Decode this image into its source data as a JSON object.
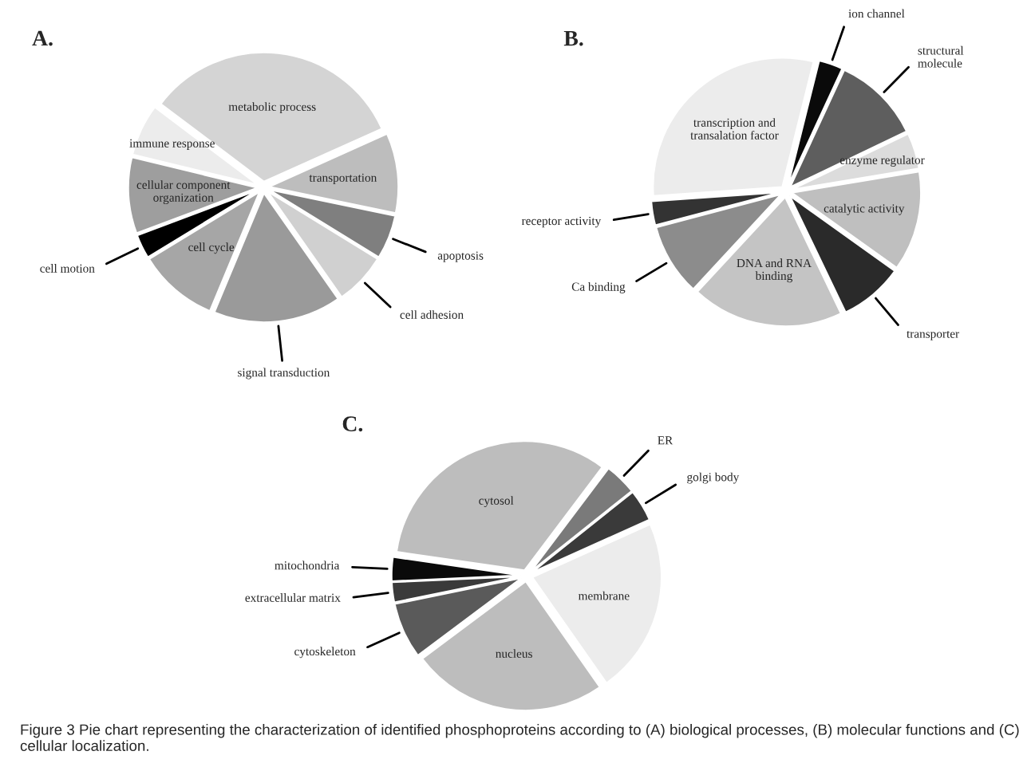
{
  "chart_data": [
    {
      "type": "pie",
      "title": "A.",
      "categories": [
        "metabolic process",
        "transportation",
        "apoptosis",
        "cell adhesion",
        "signal transduction",
        "cell cycle",
        "cell motion",
        "cellular component\norganization",
        "immune response"
      ],
      "values": [
        33,
        10,
        5.5,
        6.5,
        16,
        10,
        3,
        9.5,
        6.5
      ],
      "colors": [
        "#d4d4d4",
        "#bdbdbd",
        "#7f7f7f",
        "#d0d0d0",
        "#9a9a9a",
        "#a6a6a6",
        "#000000",
        "#9e9e9e",
        "#ececec"
      ],
      "legend": false
    },
    {
      "type": "pie",
      "title": "B.",
      "categories": [
        "ion channel",
        "structural\nmolecule",
        "enzyme regulator",
        "catalytic activity",
        "transporter",
        "DNA and RNA\nbinding",
        "Ca binding",
        "receptor activity",
        "transcription and\ntransalation factor"
      ],
      "values": [
        3,
        11,
        4.5,
        12.5,
        8,
        19,
        9,
        3,
        30
      ],
      "colors": [
        "#0a0a0a",
        "#5e5e5e",
        "#dcdcdc",
        "#bfbfbf",
        "#2a2a2a",
        "#c4c4c4",
        "#8c8c8c",
        "#333333",
        "#ececec"
      ],
      "legend": false
    },
    {
      "type": "pie",
      "title": "C.",
      "categories": [
        "ER",
        "golgi body",
        "membrane",
        "nucleus",
        "cytoskeleton",
        "extracellular matrix",
        "mitochondria",
        "cytosol"
      ],
      "values": [
        4,
        4,
        22,
        24.5,
        7,
        2.5,
        3,
        33
      ],
      "colors": [
        "#7a7a7a",
        "#3a3a3a",
        "#ececec",
        "#bdbdbd",
        "#5a5a5a",
        "#3a3a3a",
        "#0a0a0a",
        "#bdbdbd"
      ],
      "legend": false,
      "annotations": [
        "Figure 3 Pie chart representing the characterization of identified phosphoproteins according to (A) biological processes, (B) molecular functions and (C) cellular localization."
      ]
    }
  ]
}
